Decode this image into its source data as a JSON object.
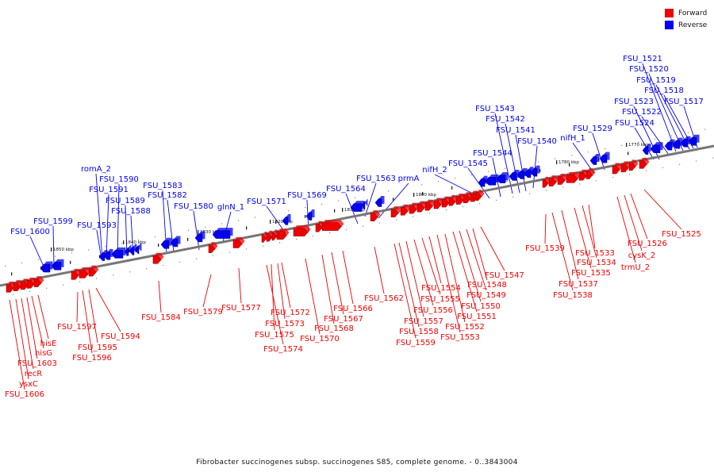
{
  "legend": {
    "forward_label": "Forward",
    "reverse_label": "Reverse",
    "forward_color": "#ee0000",
    "reverse_color": "#0000ee"
  },
  "caption": "Fibrobacter succinogenes subsp. succinogenes S85, complete genome. - 0..3843004",
  "scale_ticks": [
    "1850 kbp",
    "1840 kbp",
    "1830 kbp",
    "1820 kbp",
    "1810 kbp",
    "1800 kbp",
    "1790 kbp",
    "1780 kbp",
    "1770 kbp"
  ],
  "reverse_labels": [
    "FSU_1521",
    "FSU_1520",
    "FSU_1519",
    "FSU_1518",
    "FSU_1523",
    "FSU_1517",
    "FSU_1522",
    "FSU_1524",
    "FSU_1543",
    "FSU_1542",
    "FSU_1529",
    "FSU_1541",
    "nifH_1",
    "FSU_1540",
    "FSU_1544",
    "FSU_1545",
    "nifH_2",
    "FSU_1563",
    "prmA",
    "FSU_1564",
    "FSU_1569",
    "FSU_1571",
    "glnN_1",
    "FSU_1583",
    "FSU_1582",
    "FSU_1580",
    "romA_2",
    "FSU_1590",
    "FSU_1591",
    "FSU_1589",
    "FSU_1588",
    "FSU_1599",
    "FSU_1593",
    "FSU_1600"
  ],
  "forward_labels": [
    "FSU_1525",
    "FSU_1526",
    "cysK_2",
    "trmU_2",
    "FSU_1533",
    "FSU_1534",
    "FSU_1535",
    "FSU_1537",
    "FSU_1538",
    "FSU_1539",
    "FSU_1547",
    "FSU_1548",
    "FSU_1549",
    "FSU_1550",
    "FSU_1551",
    "FSU_1552",
    "FSU_1553",
    "FSU_1554",
    "FSU_1555",
    "FSU_1556",
    "FSU_1557",
    "FSU_1558",
    "FSU_1559",
    "FSU_1562",
    "FSU_1566",
    "FSU_1567",
    "FSU_1568",
    "FSU_1570",
    "FSU_1572",
    "FSU_1573",
    "FSU_1575",
    "FSU_1574",
    "FSU_1577",
    "FSU_1579",
    "FSU_1584",
    "FSU_1594",
    "FSU_1597",
    "FSU_1595",
    "FSU_1596",
    "hisE",
    "hisG",
    "FSU_1603",
    "recR",
    "ysxC",
    "FSU_1606"
  ]
}
